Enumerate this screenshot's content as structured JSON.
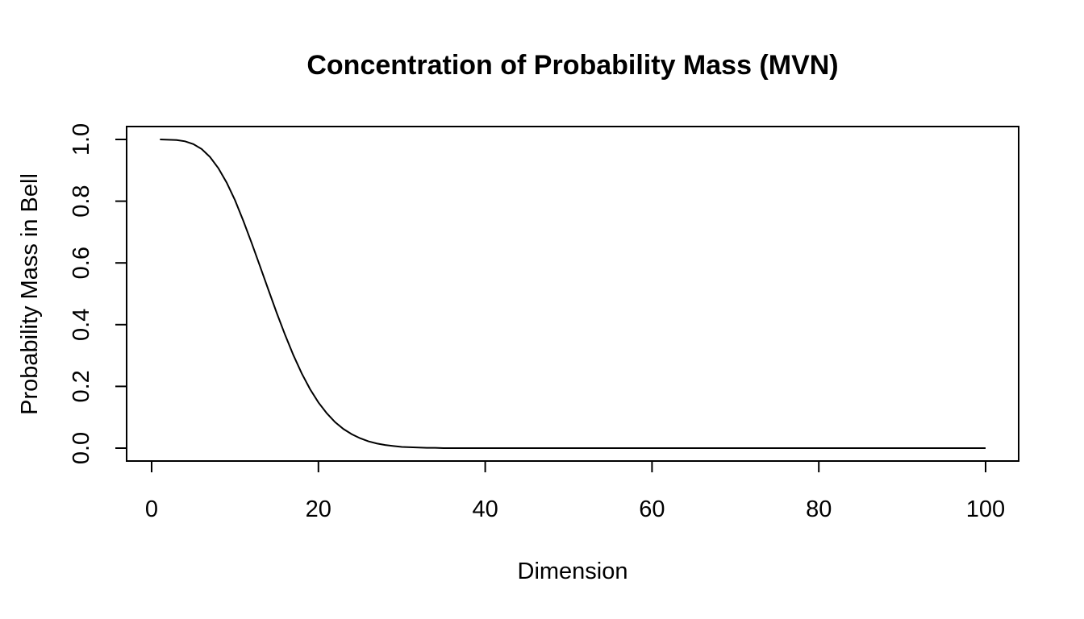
{
  "chart_data": {
    "type": "line",
    "title": "Concentration of Probability Mass (MVN)",
    "xlabel": "Dimension",
    "ylabel": "Probability Mass in Bell",
    "xlim": [
      1,
      100
    ],
    "ylim": [
      0,
      1
    ],
    "x_ticks": [
      "0",
      "20",
      "40",
      "60",
      "80",
      "100"
    ],
    "x_tick_values": [
      0,
      20,
      40,
      60,
      80,
      100
    ],
    "y_ticks": [
      "0.0",
      "0.2",
      "0.4",
      "0.6",
      "0.8",
      "1.0"
    ],
    "y_tick_values": [
      0,
      0.2,
      0.4,
      0.6,
      0.8,
      1.0
    ],
    "grid": false,
    "legend": "none",
    "line_color": "#000000",
    "x": [
      1,
      2,
      3,
      4,
      5,
      6,
      7,
      8,
      9,
      10,
      11,
      12,
      13,
      14,
      15,
      16,
      17,
      18,
      19,
      20,
      21,
      22,
      23,
      24,
      25,
      26,
      27,
      28,
      29,
      30,
      31,
      32,
      33,
      34,
      35,
      36,
      37,
      38,
      39,
      40,
      41,
      42,
      43,
      44,
      45,
      46,
      47,
      48,
      49,
      50,
      51,
      52,
      53,
      54,
      55,
      56,
      57,
      58,
      59,
      60,
      61,
      62,
      63,
      64,
      65,
      66,
      67,
      68,
      69,
      70,
      71,
      72,
      73,
      74,
      75,
      76,
      77,
      78,
      79,
      80,
      81,
      82,
      83,
      84,
      85,
      86,
      87,
      88,
      89,
      90,
      91,
      92,
      93,
      94,
      95,
      96,
      97,
      98,
      99,
      100
    ],
    "y": [
      1.0,
      0.999,
      0.998,
      0.994,
      0.985,
      0.969,
      0.943,
      0.907,
      0.86,
      0.803,
      0.736,
      0.664,
      0.589,
      0.513,
      0.438,
      0.367,
      0.301,
      0.242,
      0.191,
      0.148,
      0.113,
      0.084,
      0.062,
      0.045,
      0.032,
      0.022,
      0.015,
      0.01,
      0.007,
      0.004,
      0.003,
      0.002,
      0.001,
      0.001,
      0.0,
      0.0,
      0.0,
      0.0,
      0.0,
      0.0,
      0.0,
      0.0,
      0.0,
      0.0,
      0.0,
      0.0,
      0.0,
      0.0,
      0.0,
      0.0,
      0.0,
      0.0,
      0.0,
      0.0,
      0.0,
      0.0,
      0.0,
      0.0,
      0.0,
      0.0,
      0.0,
      0.0,
      0.0,
      0.0,
      0.0,
      0.0,
      0.0,
      0.0,
      0.0,
      0.0,
      0.0,
      0.0,
      0.0,
      0.0,
      0.0,
      0.0,
      0.0,
      0.0,
      0.0,
      0.0,
      0.0,
      0.0,
      0.0,
      0.0,
      0.0,
      0.0,
      0.0,
      0.0,
      0.0,
      0.0,
      0.0,
      0.0,
      0.0,
      0.0,
      0.0,
      0.0,
      0.0,
      0.0,
      0.0,
      0.0
    ]
  }
}
